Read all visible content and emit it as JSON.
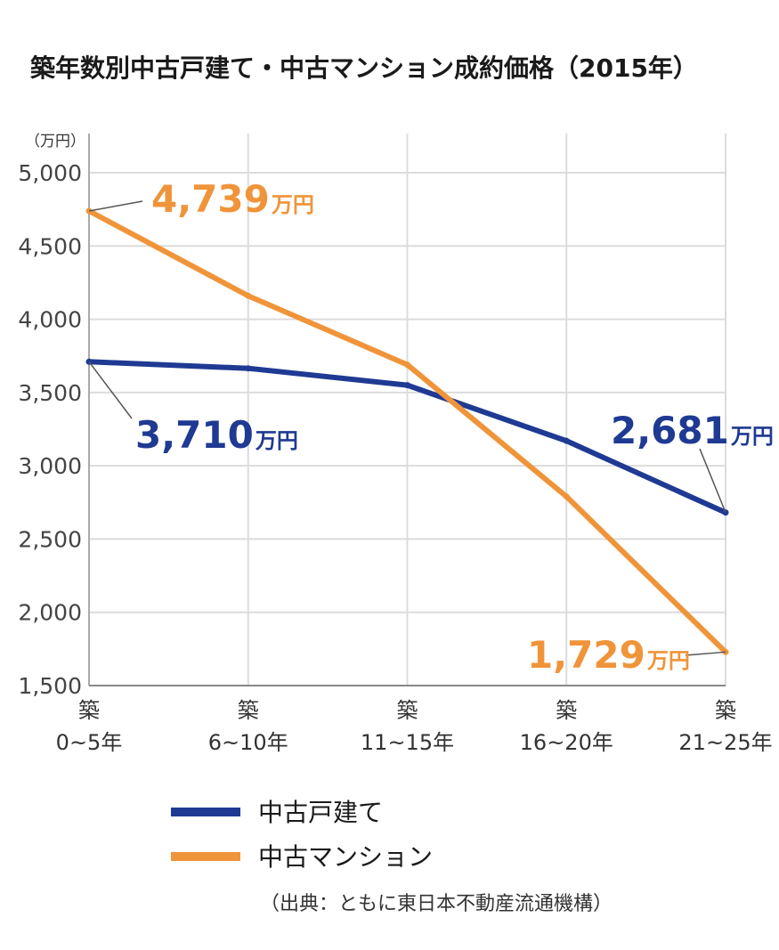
{
  "chart_data": {
    "type": "line",
    "title": "築年数別中古戸建て・中古マンション成約価格（2015年）",
    "y_unit": "（万円）",
    "ylim": [
      1500,
      5000
    ],
    "yticks": [
      5000,
      4500,
      4000,
      3500,
      3000,
      2500,
      2000,
      1500
    ],
    "ytick_labels": [
      "5,000",
      "4,500",
      "4,000",
      "3,500",
      "3,000",
      "2,500",
      "2,000",
      "1,500"
    ],
    "categories": [
      {
        "prefix": "築",
        "range": "0~5年"
      },
      {
        "prefix": "築",
        "range": "6~10年"
      },
      {
        "prefix": "築",
        "range": "11~15年"
      },
      {
        "prefix": "築",
        "range": "16~20年"
      },
      {
        "prefix": "築",
        "range": "21~25年"
      }
    ],
    "series": [
      {
        "name": "中古戸建て",
        "color": "#1f3a93",
        "values": [
          3710,
          3665,
          3550,
          3170,
          2681
        ]
      },
      {
        "name": "中古マンション",
        "color": "#f0943a",
        "values": [
          4739,
          4160,
          3690,
          2790,
          1729
        ]
      }
    ],
    "annotations": [
      {
        "series": 1,
        "index": 0,
        "value": "4,739",
        "unit": "万円"
      },
      {
        "series": 0,
        "index": 0,
        "value": "3,710",
        "unit": "万円"
      },
      {
        "series": 0,
        "index": 4,
        "value": "2,681",
        "unit": "万円"
      },
      {
        "series": 1,
        "index": 4,
        "value": "1,729",
        "unit": "万円"
      }
    ],
    "grid": true,
    "legend_position": "bottom-left",
    "source": "（出典：ともに東日本不動産流通機構）"
  }
}
